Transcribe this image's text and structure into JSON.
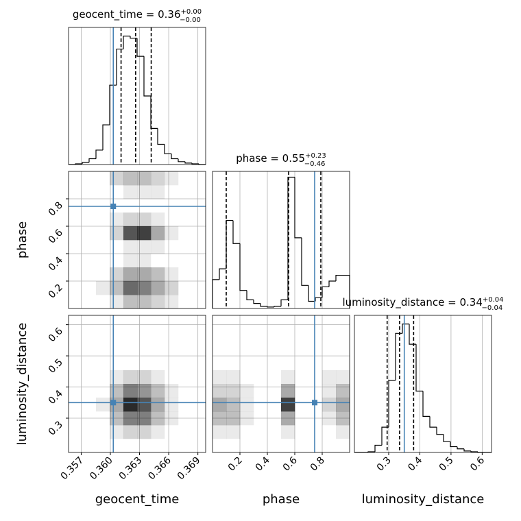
{
  "chart_data": {
    "type": "corner",
    "truth_color": "#4682b4",
    "grid": true,
    "parameters": [
      {
        "name": "geocent_time",
        "title": "geocent_time = 0.36",
        "title_upper": "+0.00",
        "title_lower": "−0.00",
        "xlim": [
          0.3557,
          0.3698
        ],
        "xticks": [
          0.357,
          {
            "value": 0.36,
            "label": "0.360"
          },
          0.363,
          0.366,
          0.369
        ],
        "truth": 0.3603,
        "quantiles": [
          0.3611,
          0.3626,
          0.3642
        ],
        "hist": {
          "counts": [
            0,
            1,
            3,
            8,
            20,
            55,
            110,
            160,
            178,
            175,
            150,
            95,
            50,
            28,
            15,
            8,
            4,
            2,
            1,
            0
          ],
          "ylim": [
            0,
            190
          ]
        }
      },
      {
        "name": "phase",
        "title": "phase = 0.55",
        "title_upper": "+0.23",
        "title_lower": "−0.46",
        "xlim": [
          0,
          1
        ],
        "xticks": [
          0.2,
          0.4,
          0.6,
          0.8
        ],
        "truth": 0.745,
        "quantiles": [
          0.1,
          0.555,
          0.79
        ],
        "hist": {
          "counts": [
            40,
            55,
            122,
            90,
            25,
            12,
            7,
            3,
            2,
            3,
            12,
            182,
            98,
            32,
            10,
            15,
            30,
            38,
            46,
            46
          ],
          "ylim": [
            0,
            190
          ]
        }
      },
      {
        "name": "luminosity_distance",
        "title": "luminosity_distance = 0.34",
        "title_upper": "+0.04",
        "title_lower": "−0.04",
        "xlim": [
          0.19,
          0.63
        ],
        "xticks": [
          0.3,
          0.4,
          0.5,
          0.6
        ],
        "truth": 0.35,
        "quantiles": [
          0.295,
          0.335,
          0.38
        ],
        "hist": {
          "counts": [
            0,
            0,
            1,
            10,
            35,
            100,
            165,
            178,
            150,
            85,
            50,
            35,
            25,
            15,
            8,
            5,
            2,
            1,
            0,
            0
          ],
          "ylim": [
            0,
            190
          ]
        }
      }
    ],
    "pairs": [
      {
        "x": 0,
        "y": 1,
        "density": [
          [
            0,
            0,
            0,
            1,
            3,
            3,
            2,
            1,
            0,
            0
          ],
          [
            0,
            0,
            1,
            3,
            7,
            6,
            4,
            2,
            0,
            0
          ],
          [
            0,
            0,
            0,
            2,
            4,
            4,
            3,
            1,
            0,
            0
          ],
          [
            0,
            0,
            0,
            0,
            1,
            1,
            0,
            0,
            0,
            0
          ],
          [
            0,
            0,
            0,
            0,
            1,
            1,
            1,
            0,
            0,
            0
          ],
          [
            0,
            0,
            0,
            2,
            8,
            9,
            4,
            1,
            0,
            0
          ],
          [
            0,
            0,
            0,
            1,
            2,
            2,
            1,
            0,
            0,
            0
          ],
          [
            0,
            0,
            0,
            0,
            0,
            0,
            0,
            0,
            0,
            0
          ],
          [
            0,
            0,
            0,
            0,
            1,
            1,
            1,
            0,
            0,
            0
          ],
          [
            0,
            0,
            0,
            2,
            3,
            3,
            2,
            1,
            0,
            0
          ]
        ]
      },
      {
        "x": 0,
        "y": 2,
        "density": [
          [
            0,
            0,
            0,
            0,
            0,
            0,
            0,
            0,
            0,
            0
          ],
          [
            0,
            0,
            0,
            1,
            2,
            2,
            1,
            0,
            0,
            0
          ],
          [
            0,
            0,
            0,
            3,
            6,
            6,
            3,
            1,
            0,
            0
          ],
          [
            0,
            0,
            1,
            4,
            10,
            8,
            4,
            1,
            0,
            0
          ],
          [
            0,
            0,
            0,
            3,
            6,
            5,
            3,
            1,
            0,
            0
          ],
          [
            0,
            0,
            0,
            1,
            2,
            2,
            1,
            0,
            0,
            0
          ],
          [
            0,
            0,
            0,
            0,
            0,
            0,
            0,
            0,
            0,
            0
          ],
          [
            0,
            0,
            0,
            0,
            0,
            0,
            0,
            0,
            0,
            0
          ],
          [
            0,
            0,
            0,
            0,
            0,
            0,
            0,
            0,
            0,
            0
          ],
          [
            0,
            0,
            0,
            0,
            0,
            0,
            0,
            0,
            0,
            0
          ]
        ]
      },
      {
        "x": 1,
        "y": 2,
        "density": [
          [
            0,
            0,
            0,
            0,
            0,
            0,
            0,
            0,
            0,
            0
          ],
          [
            1,
            1,
            0,
            0,
            0,
            1,
            0,
            0,
            0,
            1
          ],
          [
            3,
            3,
            1,
            0,
            0,
            4,
            0,
            0,
            1,
            3
          ],
          [
            4,
            3,
            1,
            0,
            0,
            9,
            0,
            0,
            2,
            4
          ],
          [
            2,
            2,
            1,
            0,
            0,
            4,
            0,
            0,
            1,
            3
          ],
          [
            1,
            1,
            0,
            0,
            0,
            1,
            0,
            0,
            1,
            1
          ],
          [
            0,
            0,
            0,
            0,
            0,
            0,
            0,
            0,
            0,
            0
          ],
          [
            0,
            0,
            0,
            0,
            0,
            0,
            0,
            0,
            0,
            0
          ],
          [
            0,
            0,
            0,
            0,
            0,
            0,
            0,
            0,
            0,
            0
          ],
          [
            0,
            0,
            0,
            0,
            0,
            0,
            0,
            0,
            0,
            0
          ]
        ]
      }
    ]
  }
}
